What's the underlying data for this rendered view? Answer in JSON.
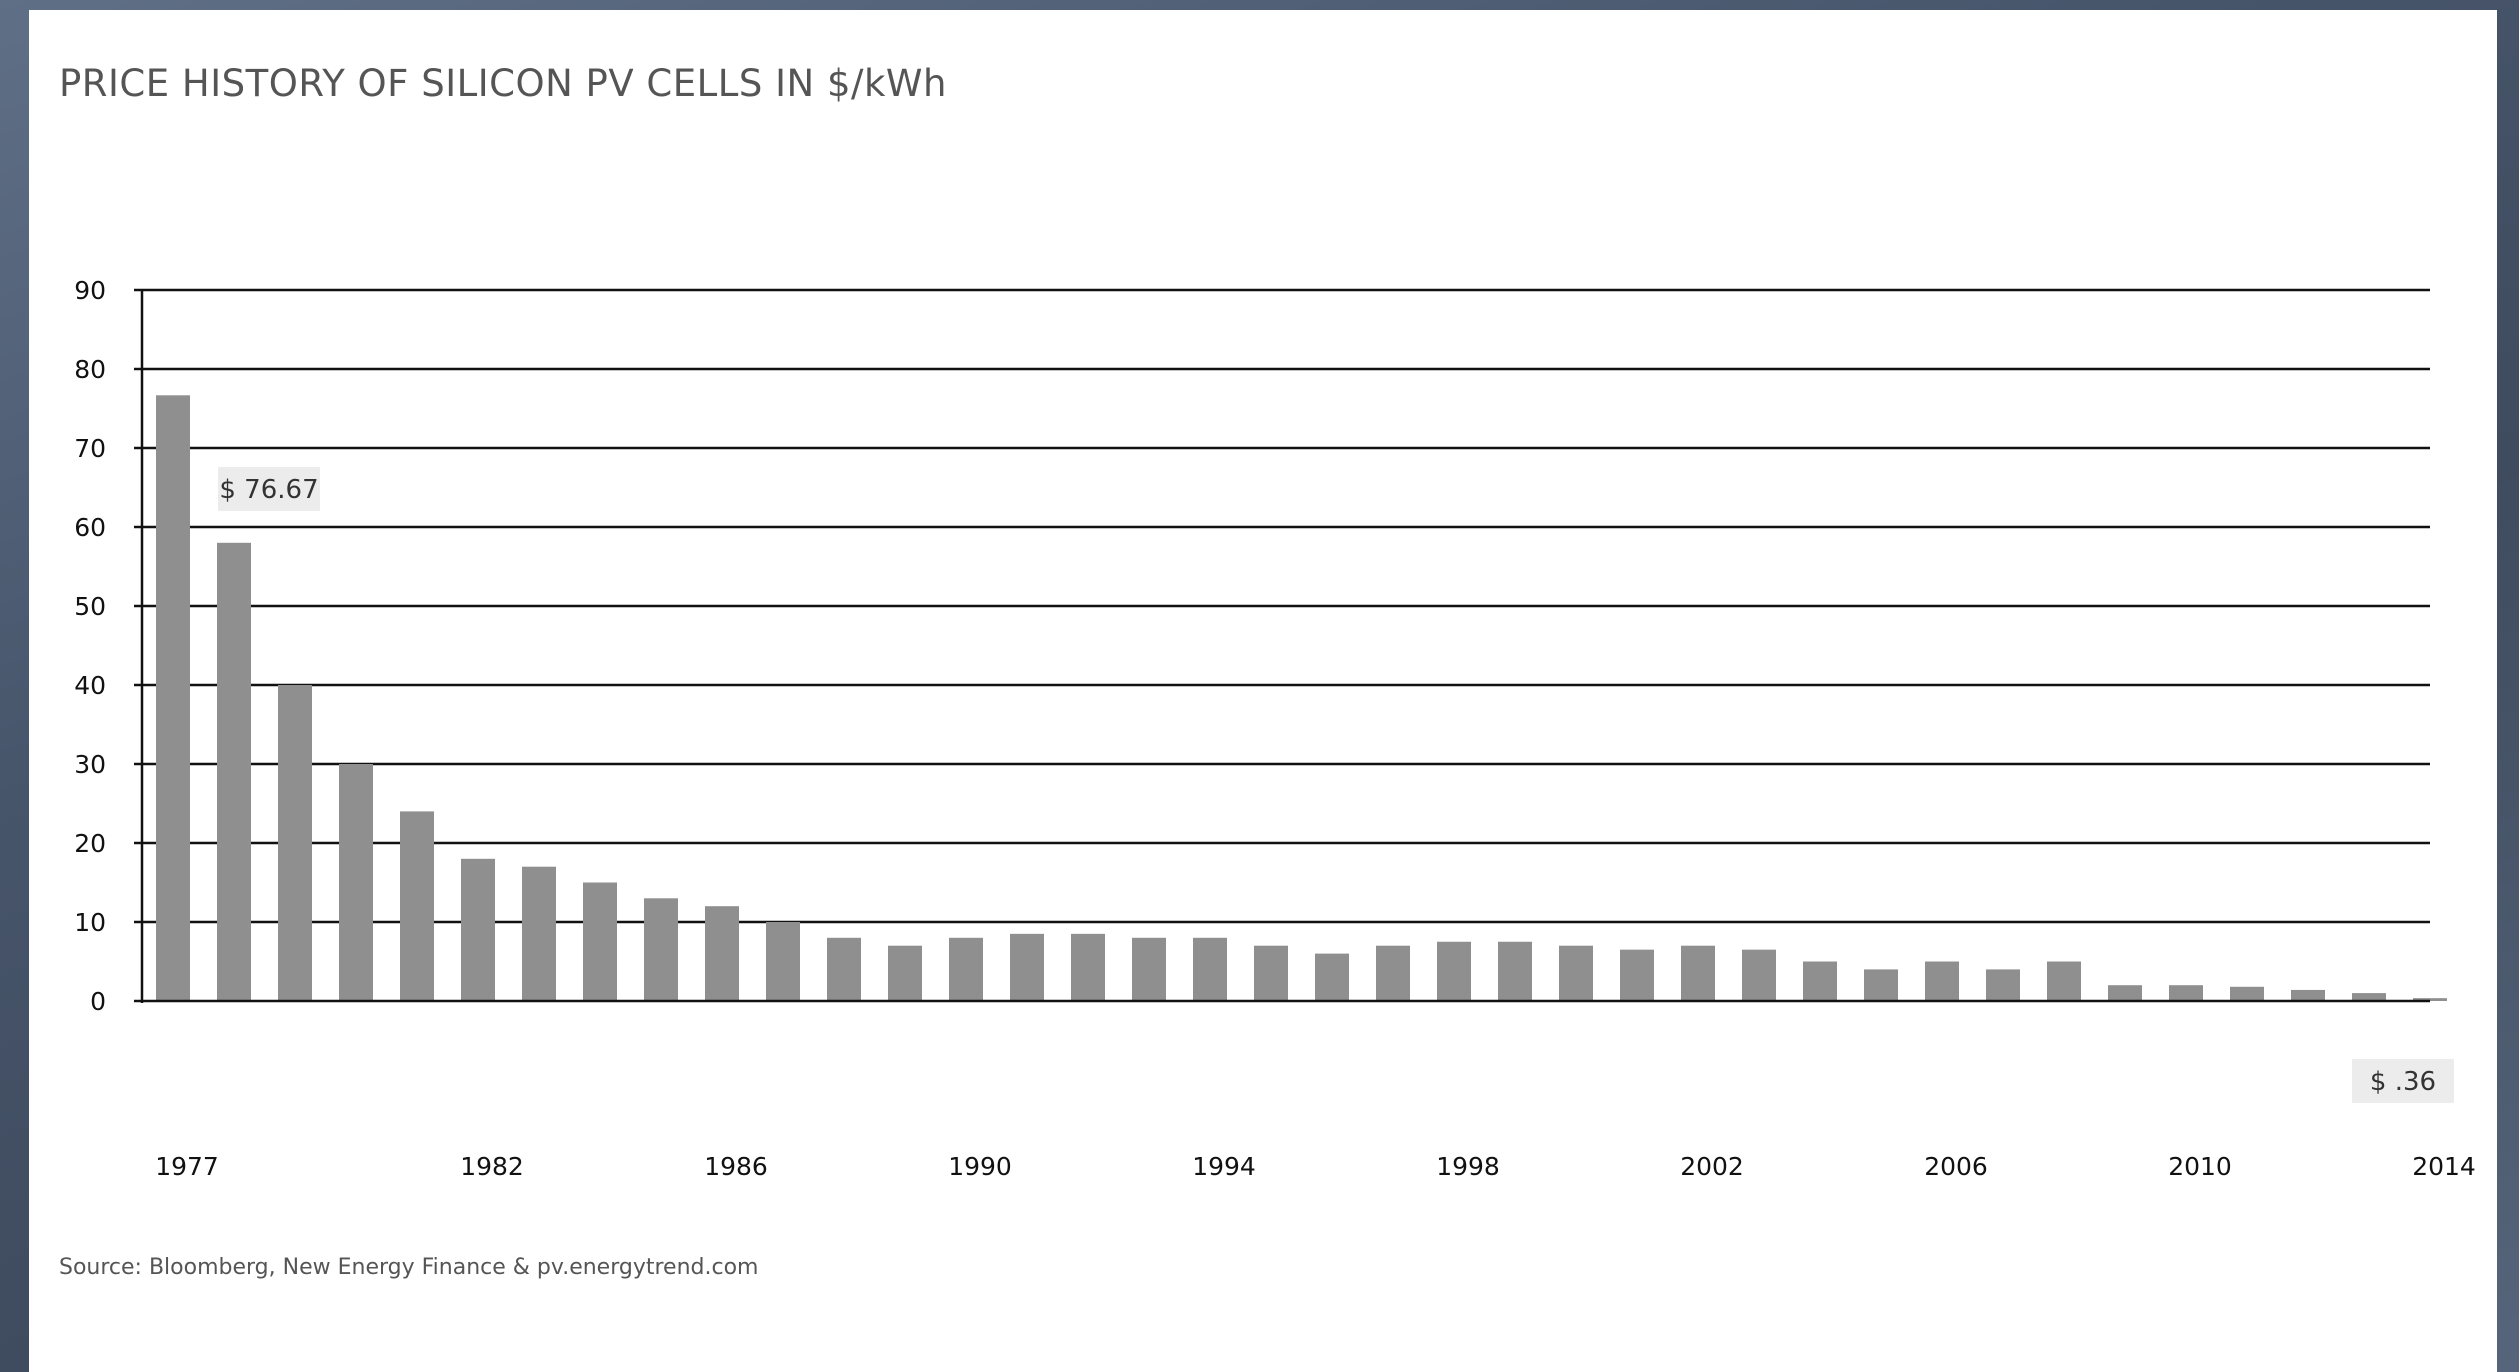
{
  "title": "PRICE HISTORY OF SILICON PV CELLS IN $/kWh",
  "source": "Source: Bloomberg, New Energy Finance & pv.energytrend.com",
  "chart_data": {
    "type": "bar",
    "title": "PRICE HISTORY OF SILICON PV CELLS IN $/kWh",
    "xlabel": "",
    "ylabel": "",
    "ylim": [
      0,
      90
    ],
    "yticks": [
      0,
      10,
      20,
      30,
      40,
      50,
      60,
      70,
      80,
      90
    ],
    "grid": true,
    "bar_color": "#8f8f8f",
    "categories": [
      "1977",
      "1978",
      "1979",
      "1980",
      "1981",
      "1982",
      "1983",
      "1984",
      "1985",
      "1986",
      "1987",
      "1988",
      "1989",
      "1990",
      "1991",
      "1992",
      "1993",
      "1994",
      "1995",
      "1996",
      "1997",
      "1998",
      "1999",
      "2000",
      "2001",
      "2002",
      "2003",
      "2004",
      "2005",
      "2006",
      "2007",
      "2008",
      "2009",
      "2010",
      "2011",
      "2012",
      "2013",
      "2014"
    ],
    "values": [
      76.67,
      58,
      40,
      30,
      24,
      18,
      17,
      15,
      13,
      12,
      10,
      8,
      7,
      8,
      8.5,
      8.5,
      8,
      8,
      7,
      6,
      7,
      7.5,
      7.5,
      7,
      6.5,
      7,
      6.5,
      5,
      4,
      5,
      4,
      5,
      2,
      2,
      1.8,
      1.4,
      1,
      0.36
    ],
    "xtick_labels": [
      "1977",
      "1982",
      "1986",
      "1990",
      "1994",
      "1998",
      "2002",
      "2006",
      "2010",
      "2014"
    ],
    "annotations": [
      {
        "category": "1977",
        "text": "$ 76.67"
      },
      {
        "category": "2014",
        "text": "$ .36"
      }
    ]
  }
}
